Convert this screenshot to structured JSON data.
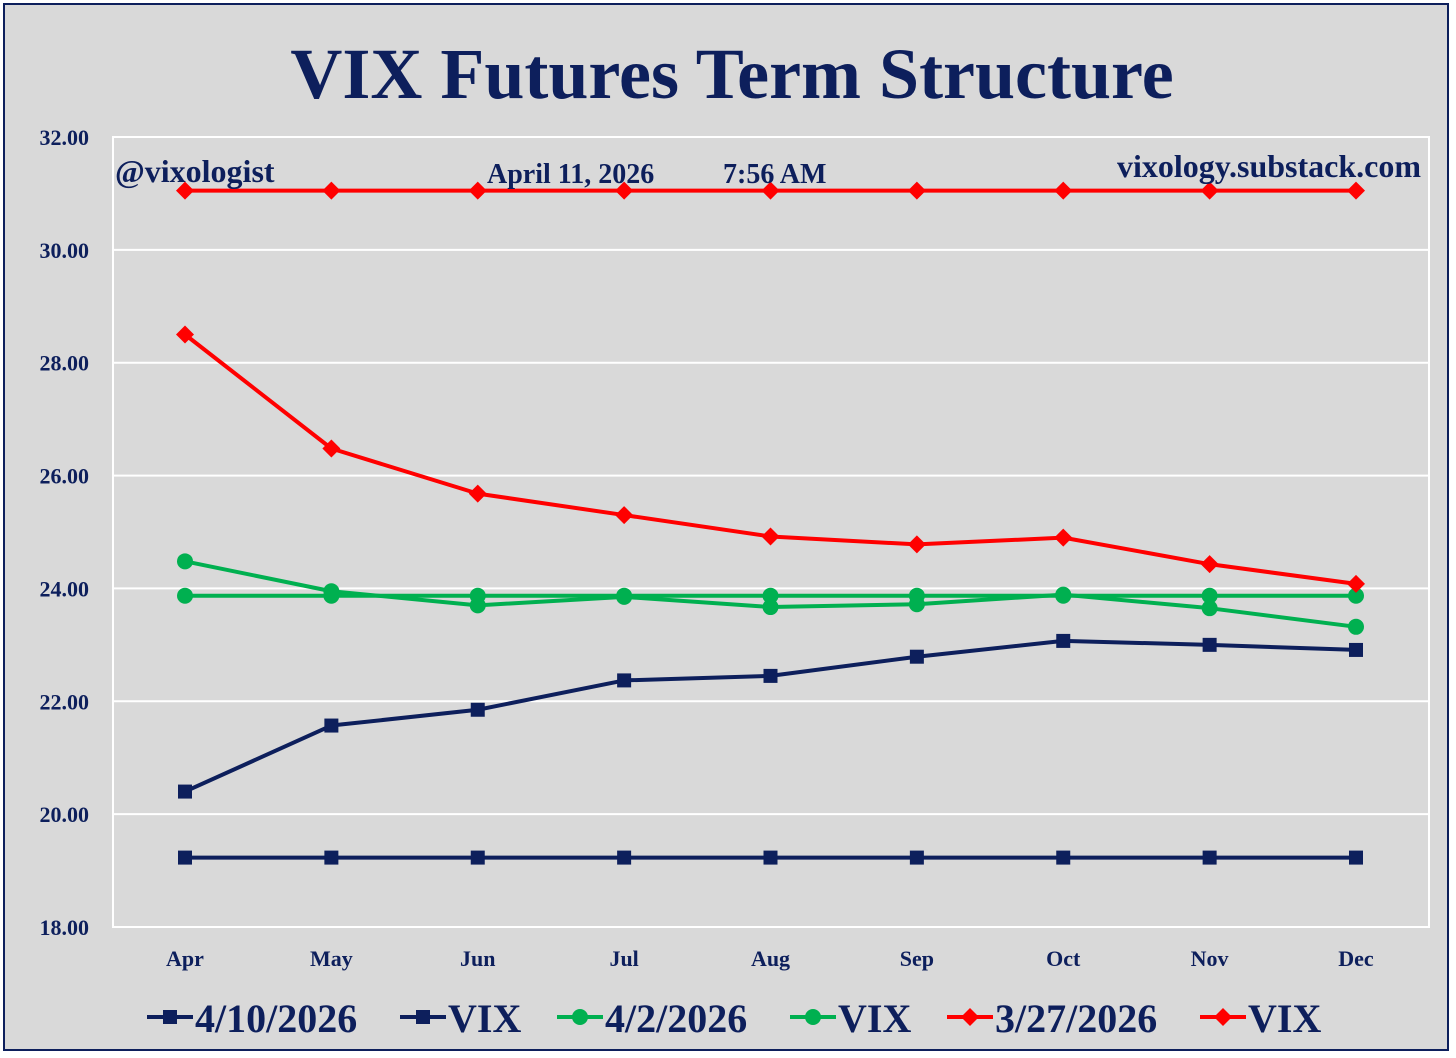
{
  "chart_data": {
    "type": "line",
    "title": "VIX Futures Term Structure",
    "annotations": {
      "handle": "@vixologist",
      "date": "April 11, 2026",
      "time": "7:56 AM",
      "site": "vixology.substack.com"
    },
    "categories": [
      "Apr",
      "May",
      "Jun",
      "Jul",
      "Aug",
      "Sep",
      "Oct",
      "Nov",
      "Dec"
    ],
    "ylim": [
      18,
      32
    ],
    "yticks": [
      "18.00",
      "20.00",
      "22.00",
      "24.00",
      "26.00",
      "28.00",
      "30.00",
      "32.00"
    ],
    "grid": true,
    "legend_position": "bottom",
    "series": [
      {
        "name": "4/10/2026",
        "color": "#0d1f5c",
        "marker": "square",
        "values": [
          20.4,
          21.57,
          21.85,
          22.37,
          22.45,
          22.79,
          23.07,
          23.0,
          22.91
        ]
      },
      {
        "name": "VIX",
        "color": "#0d1f5c",
        "marker": "square",
        "values": [
          19.23,
          19.23,
          19.23,
          19.23,
          19.23,
          19.23,
          19.23,
          19.23,
          19.23
        ]
      },
      {
        "name": "4/2/2026",
        "color": "#00b050",
        "marker": "circle",
        "values": [
          24.48,
          23.95,
          23.7,
          23.85,
          23.67,
          23.72,
          23.89,
          23.65,
          23.32
        ]
      },
      {
        "name": "VIX",
        "color": "#00b050",
        "marker": "circle",
        "values": [
          23.87,
          23.87,
          23.87,
          23.87,
          23.87,
          23.87,
          23.87,
          23.87,
          23.87
        ]
      },
      {
        "name": "3/27/2026",
        "color": "#ff0000",
        "marker": "diamond",
        "values": [
          28.5,
          26.48,
          25.68,
          25.3,
          24.92,
          24.78,
          24.9,
          24.43,
          24.08
        ]
      },
      {
        "name": "VIX",
        "color": "#ff0000",
        "marker": "diamond",
        "values": [
          31.05,
          31.05,
          31.05,
          31.05,
          31.05,
          31.05,
          31.05,
          31.05,
          31.05
        ]
      }
    ]
  }
}
